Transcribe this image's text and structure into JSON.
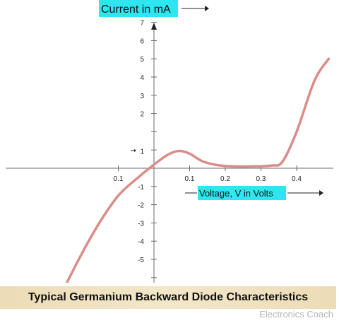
{
  "chart_data": {
    "type": "line",
    "title": "Typical Germanium Backward Diode Characteristics",
    "xlabel": "Voltage,  V  in Volts",
    "ylabel": "Current in mA",
    "colors": {
      "curve": "#D98C88",
      "axis": "#6b6b6b",
      "label_bg": "#2EE6F0",
      "caption_bg": "#F2E6C8"
    },
    "x_ticks": [
      {
        "value": -0.1,
        "label": "0.1"
      },
      {
        "value": 0.1,
        "label": "0.1"
      },
      {
        "value": 0.2,
        "label": "0.2"
      },
      {
        "value": 0.3,
        "label": "0.3"
      },
      {
        "value": 0.4,
        "label": "0.4"
      }
    ],
    "y_ticks": [
      {
        "value": 7,
        "label": "7"
      },
      {
        "value": 6,
        "label": "6"
      },
      {
        "value": 5,
        "label": "5"
      },
      {
        "value": 4,
        "label": "4"
      },
      {
        "value": 3,
        "label": "3"
      },
      {
        "value": 2,
        "label": "2"
      },
      {
        "value": 1,
        "label": "1"
      },
      {
        "value": -1,
        "label": "-1"
      },
      {
        "value": -2,
        "label": "-2"
      },
      {
        "value": -3,
        "label": "-3"
      },
      {
        "value": -4,
        "label": "-4"
      },
      {
        "value": -5,
        "label": "-5"
      }
    ],
    "y_tick_positions": [
      1,
      2,
      3,
      4,
      5,
      6,
      7,
      8,
      -1,
      -2,
      -3,
      -4,
      -5,
      -6
    ],
    "series": [
      {
        "points": [
          [
            -0.25,
            -6.5
          ],
          [
            -0.2,
            -4.6
          ],
          [
            -0.15,
            -2.9
          ],
          [
            -0.1,
            -1.5
          ],
          [
            -0.05,
            -0.6
          ],
          [
            0.0,
            0.2
          ],
          [
            0.04,
            0.75
          ],
          [
            0.07,
            0.95
          ],
          [
            0.1,
            0.8
          ],
          [
            0.14,
            0.35
          ],
          [
            0.2,
            0.12
          ],
          [
            0.28,
            0.1
          ],
          [
            0.33,
            0.15
          ],
          [
            0.36,
            0.35
          ],
          [
            0.4,
            2.0
          ],
          [
            0.45,
            4.8
          ],
          [
            0.49,
            6.0
          ]
        ]
      }
    ]
  },
  "watermark": "Electronics Coach"
}
